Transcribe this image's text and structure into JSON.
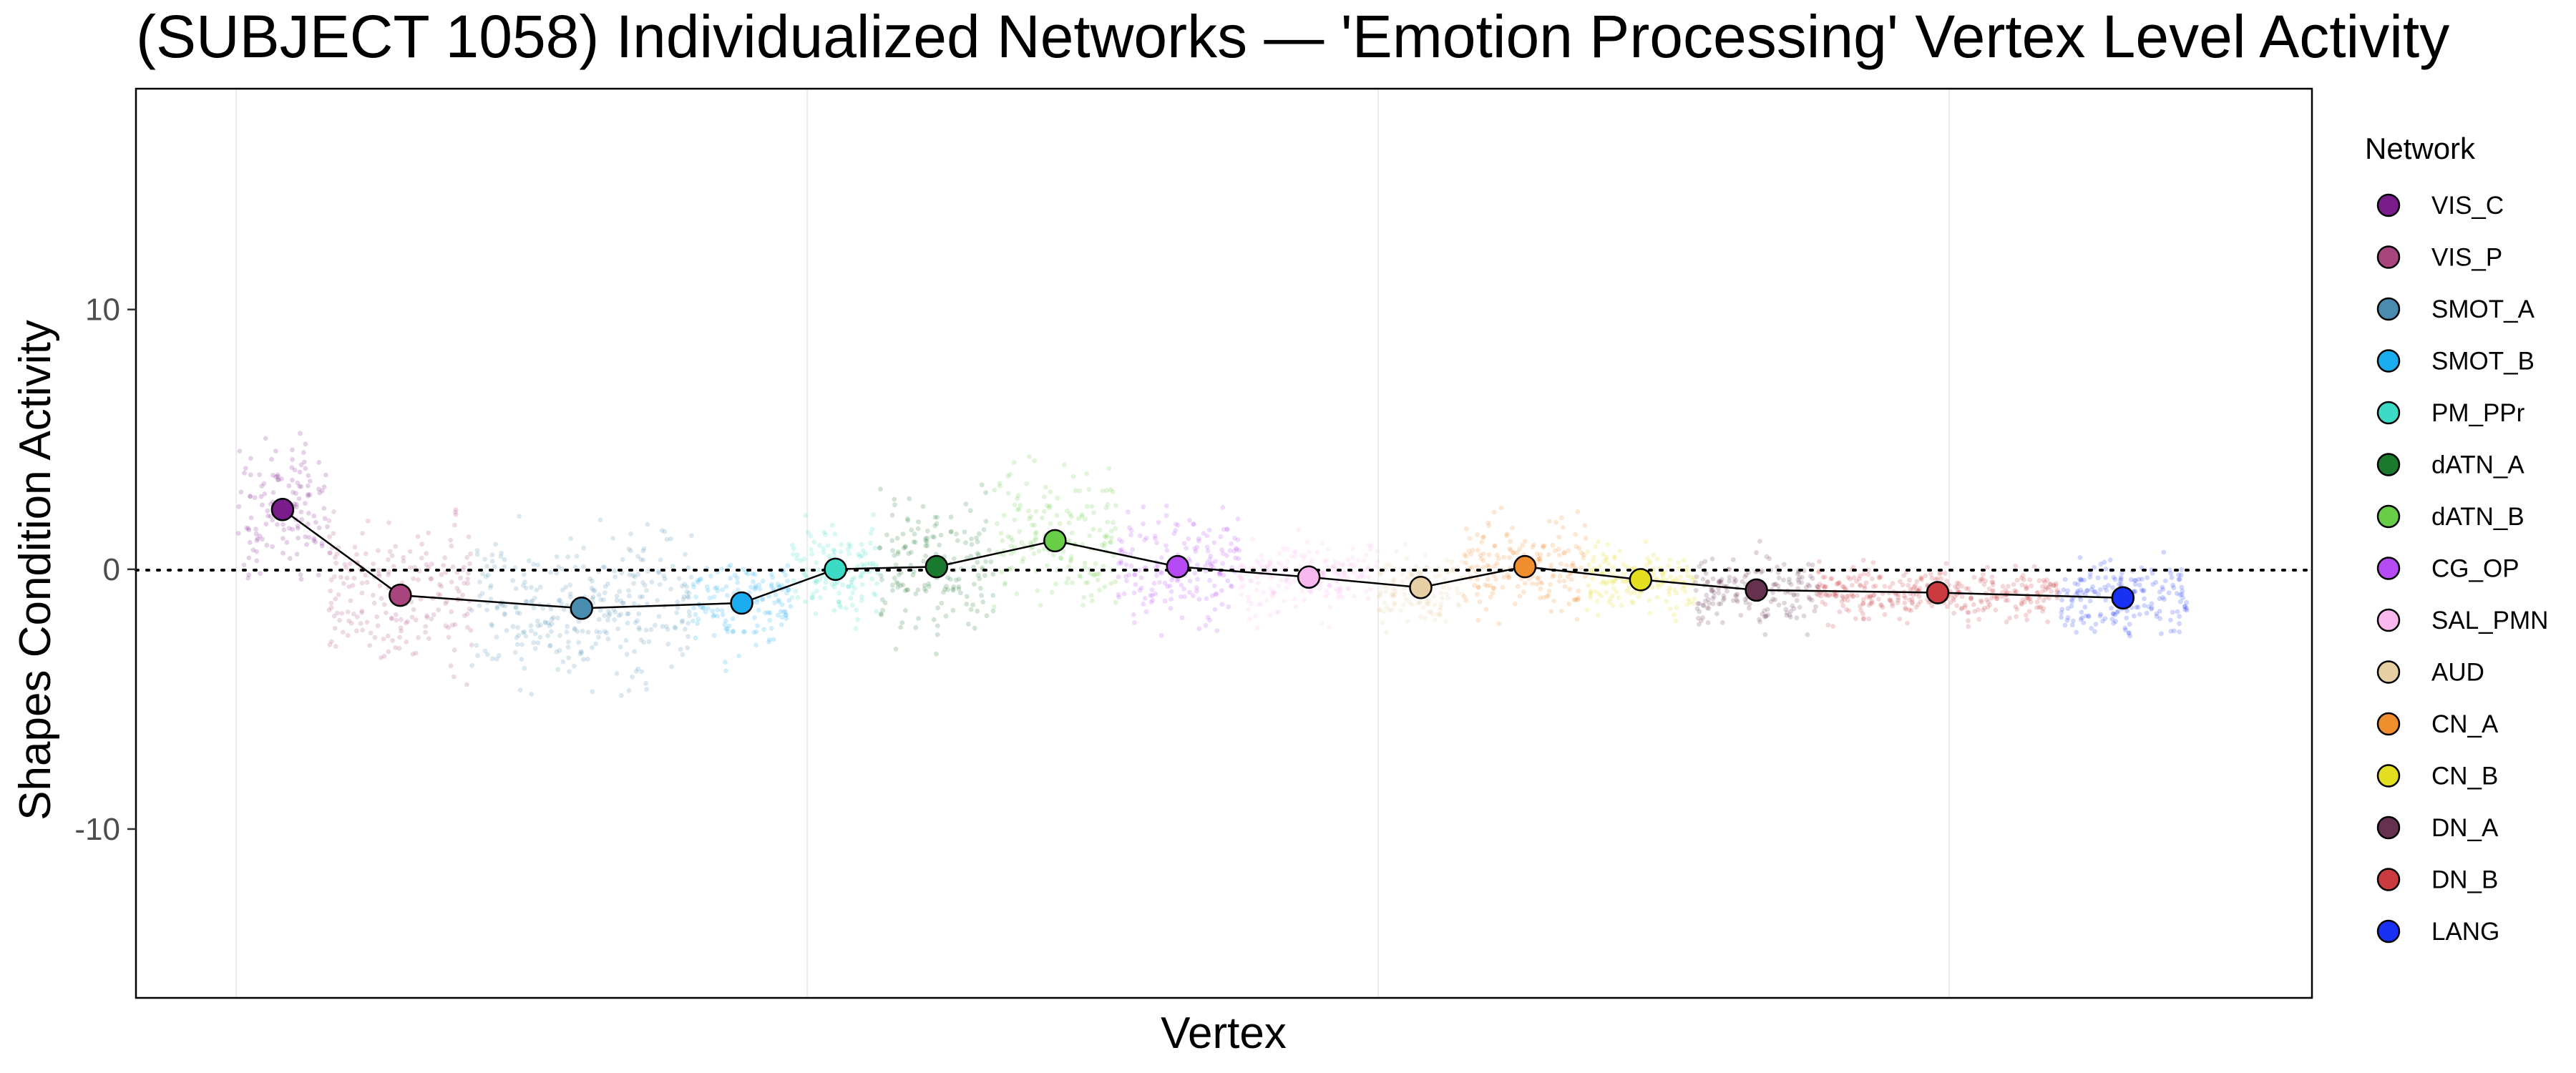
{
  "chart_data": {
    "type": "scatter",
    "title": "(SUBJECT 1058) Individualized Networks — 'Emotion Processing' Vertex Level Activity",
    "xlabel": "Vertex",
    "ylabel": "Shapes Condition Activity",
    "ylim": [
      -16.5,
      18.5
    ],
    "yticks": [
      -10,
      0,
      10
    ],
    "reference_line_y": 0,
    "grid": true,
    "legend": {
      "title": "Network",
      "position": "right"
    },
    "series": [
      {
        "name": "VIS_C",
        "color": "#7B1C8C",
        "x_start": 0,
        "x_end": 1200,
        "mean_x": 600,
        "mean": 2.3,
        "spread": 2.3
      },
      {
        "name": "VIS_P",
        "color": "#A8447E",
        "x_start": 1200,
        "x_end": 3050,
        "mean_x": 2125,
        "mean": -1.0,
        "spread": 2.5
      },
      {
        "name": "SMOT_A",
        "color": "#4A8CAF",
        "x_start": 3050,
        "x_end": 5900,
        "mean_x": 4475,
        "mean": -1.5,
        "spread": 2.4
      },
      {
        "name": "SMOT_B",
        "color": "#1AACEF",
        "x_start": 5900,
        "x_end": 7200,
        "mean_x": 6550,
        "mean": -1.3,
        "spread": 1.5
      },
      {
        "name": "PM_PPr",
        "color": "#3DDBC6",
        "x_start": 7200,
        "x_end": 8330,
        "mean_x": 7765,
        "mean": 0.0,
        "spread": 1.6
      },
      {
        "name": "dATN_A",
        "color": "#197A2E",
        "x_start": 8330,
        "x_end": 9820,
        "mean_x": 9075,
        "mean": 0.1,
        "spread": 2.2
      },
      {
        "name": "dATN_B",
        "color": "#68CE47",
        "x_start": 9820,
        "x_end": 11400,
        "mean_x": 10610,
        "mean": 1.1,
        "spread": 2.3
      },
      {
        "name": "CG_OP",
        "color": "#B64BF5",
        "x_start": 11400,
        "x_end": 13000,
        "mean_x": 12200,
        "mean": 0.1,
        "spread": 1.8
      },
      {
        "name": "SAL_PMN",
        "color": "#FBB8EE",
        "x_start": 13000,
        "x_end": 14800,
        "mean_x": 13900,
        "mean": -0.3,
        "spread": 1.2
      },
      {
        "name": "AUD",
        "color": "#E5CFA3",
        "x_start": 14800,
        "x_end": 15900,
        "mean_x": 15350,
        "mean": -0.7,
        "spread": 1.2
      },
      {
        "name": "CN_A",
        "color": "#F08E2D",
        "x_start": 15900,
        "x_end": 17500,
        "mean_x": 16700,
        "mean": 0.1,
        "spread": 1.6
      },
      {
        "name": "CN_B",
        "color": "#E3DE1F",
        "x_start": 17500,
        "x_end": 18900,
        "mean_x": 18200,
        "mean": -0.4,
        "spread": 1.1
      },
      {
        "name": "DN_A",
        "color": "#66314E",
        "x_start": 18900,
        "x_end": 20500,
        "mean_x": 19700,
        "mean": -0.8,
        "spread": 1.2
      },
      {
        "name": "DN_B",
        "color": "#CA3A3F",
        "x_start": 20500,
        "x_end": 23600,
        "mean_x": 22050,
        "mean": -0.9,
        "spread": 0.9
      },
      {
        "name": "LANG",
        "color": "#1930F5",
        "x_start": 23600,
        "x_end": 25300,
        "mean_x": 24450,
        "mean": -1.1,
        "spread": 1.3
      }
    ]
  }
}
